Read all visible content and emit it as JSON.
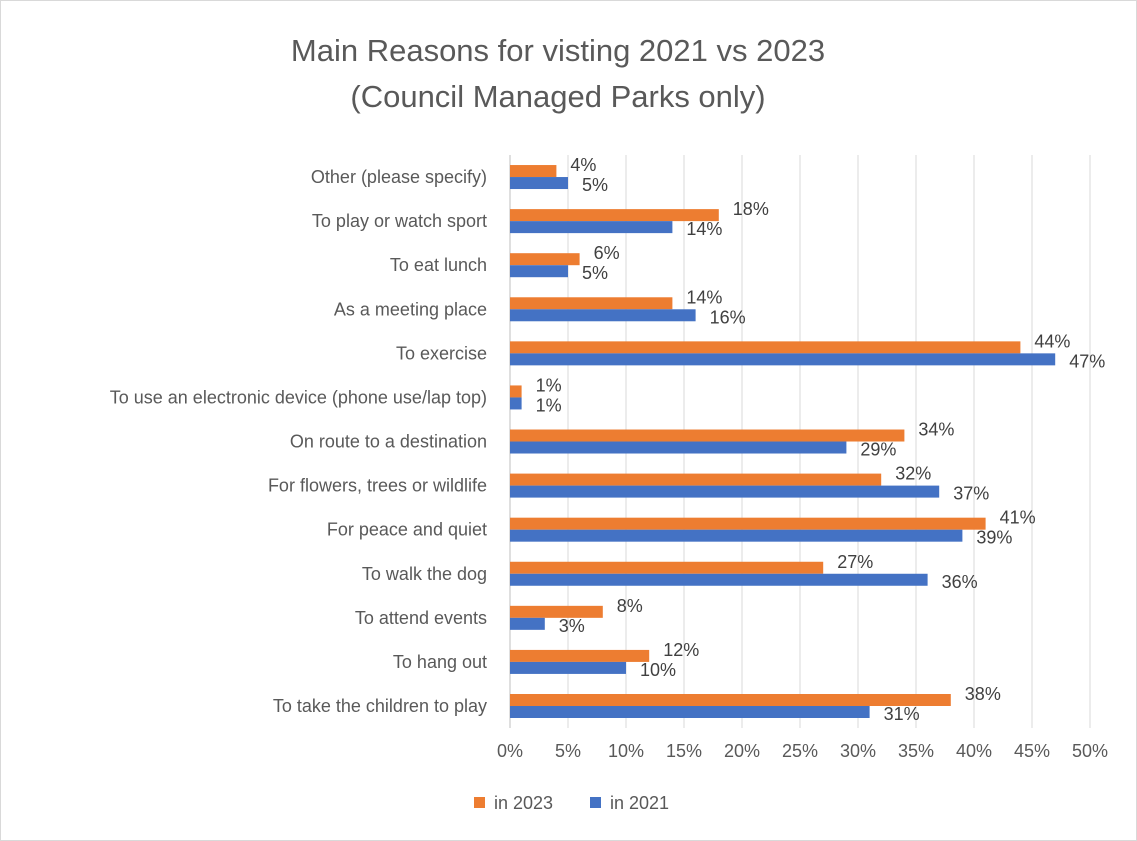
{
  "chart_data": {
    "type": "bar",
    "orientation": "horizontal",
    "title_lines": [
      "Main Reasons for visting 2021 vs 2023",
      "(Council Managed Parks only)"
    ],
    "categories": [
      "Other (please specify)",
      "To play or watch sport",
      "To eat lunch",
      "As a meeting place",
      "To exercise",
      "To use an electronic device (phone use/lap top)",
      "On route to a destination",
      "For flowers, trees or wildlife",
      "For peace and quiet",
      "To walk the dog",
      "To attend events",
      "To hang out",
      "To take the children to play"
    ],
    "series": [
      {
        "name": "in 2023",
        "color": "#ED7D31",
        "values": [
          4,
          18,
          6,
          14,
          44,
          1,
          34,
          32,
          41,
          27,
          8,
          12,
          38
        ],
        "labels": [
          "4%",
          "18%",
          "6%",
          "14%",
          "44%",
          "1%",
          "34%",
          "32%",
          "41%",
          "27%",
          "8%",
          "12%",
          "38%"
        ]
      },
      {
        "name": "in 2021",
        "color": "#4472C4",
        "values": [
          5,
          14,
          5,
          16,
          47,
          1,
          29,
          37,
          39,
          36,
          3,
          10,
          31
        ],
        "labels": [
          "5%",
          "14%",
          "5%",
          "16%",
          "47%",
          "1%",
          "29%",
          "37%",
          "39%",
          "36%",
          "3%",
          "10%",
          "31%"
        ]
      }
    ],
    "xlim": [
      0,
      50
    ],
    "xticks": [
      "0%",
      "5%",
      "10%",
      "15%",
      "20%",
      "25%",
      "30%",
      "35%",
      "40%",
      "45%",
      "50%"
    ],
    "grid": true,
    "legend": "bottom"
  }
}
